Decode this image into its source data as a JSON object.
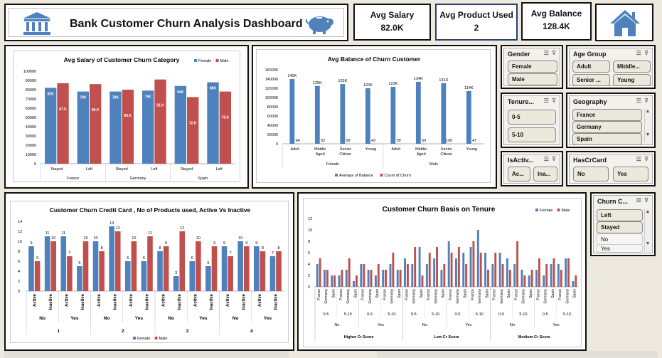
{
  "header": {
    "title": "Bank Customer Churn Analysis Dashboard",
    "bank_icon": "bank-building-icon",
    "piggy_icon": "piggy-bank-icon"
  },
  "kpis": [
    {
      "label": "Avg Salary",
      "value": "82.0K"
    },
    {
      "label": "Avg Product Used",
      "value": "2"
    },
    {
      "label": "Avg Balance",
      "value": "128.4K"
    }
  ],
  "home_icon": "home-icon",
  "colors": {
    "blue": "#4f81bd",
    "red": "#c0504d",
    "dark_icon": "#2c64b0"
  },
  "slicers": {
    "gender": {
      "title": "Gender",
      "items": [
        "Female",
        "Male"
      ]
    },
    "age_group": {
      "title": "Age Group",
      "items": [
        "Adult",
        "Middle...",
        "Senior ...",
        "Young"
      ]
    },
    "tenure": {
      "title": "Tenure...",
      "items": [
        "0-5",
        "5-10"
      ]
    },
    "geography": {
      "title": "Geography",
      "items": [
        "France",
        "Germany",
        "Spain"
      ]
    },
    "is_active": {
      "title": "IsActiv...",
      "items": [
        "Ac...",
        "Ina..."
      ]
    },
    "has_cr_card": {
      "title": "HasCrCard",
      "items": [
        "No",
        "Yes"
      ]
    },
    "churn": {
      "title": "Churn C...",
      "items": [
        "Left",
        "Stayed",
        "No",
        "Yes"
      ]
    }
  },
  "chart_data": [
    {
      "type": "bar",
      "title": "Avg Salary of Customer Churn Category",
      "legend": [
        "Female",
        "Male"
      ],
      "legend_position": "top-right",
      "ylim": [
        0,
        100000
      ],
      "yticks": [
        "0",
        "10000",
        "20000",
        "30000",
        "40000",
        "50000",
        "60000",
        "70000",
        "80000",
        "90000",
        "100000"
      ],
      "categories": [
        "Stayed",
        "Left",
        "Stayed",
        "Left",
        "Stayed",
        "Left"
      ],
      "groups": [
        "France",
        "Germany",
        "Spain"
      ],
      "series": [
        {
          "name": "Female",
          "values": [
            82000,
            78000,
            78000,
            79000,
            84000,
            88000
          ],
          "labels": [
            "82K",
            "78K",
            "78K",
            "79K",
            "84K",
            "88K"
          ]
        },
        {
          "name": "Male",
          "values": [
            87000,
            86000,
            80000,
            91000,
            72000,
            78000
          ],
          "labels": [
            "87.K",
            "86.K",
            "80.K",
            "91.K",
            "72.K",
            "78.K"
          ]
        }
      ]
    },
    {
      "type": "bar",
      "title": "Avg Balance of Churn Customer",
      "legend": [
        "Average of Balance",
        "Count of Churn"
      ],
      "legend_position": "bottom",
      "ylim": [
        0,
        160000
      ],
      "yticks": [
        "0",
        "20000",
        "40000",
        "60000",
        "80000",
        "100000",
        "120000",
        "140000",
        "160000"
      ],
      "categories": [
        "Adult",
        "Middle Aged",
        "Senior Citizen",
        "Young",
        "Adult",
        "Middle Aged",
        "Senior Citizen",
        "Young"
      ],
      "groups": [
        "Female",
        "Male"
      ],
      "series": [
        {
          "name": "Average of Balance",
          "values": [
            140000,
            125000,
            129000,
            120000,
            123000,
            134000,
            131000,
            114000
          ],
          "labels": [
            "140K",
            "125K",
            "129K",
            "120K",
            "123K",
            "134K",
            "131K",
            "114K"
          ]
        },
        {
          "name": "Count of Churn",
          "values": [
            64,
            52,
            99,
            43,
            39,
            50,
            106,
            47
          ],
          "labels": [
            "64",
            "52",
            "99",
            "43",
            "39",
            "50",
            "106",
            "47"
          ]
        }
      ]
    },
    {
      "type": "bar",
      "title": "Customer Churn Credit Card , No of Products used, Active Vs Inactive",
      "legend": [
        "Female",
        "Male"
      ],
      "legend_position": "bottom",
      "ylim": [
        0,
        14
      ],
      "yticks": [
        "0",
        "2",
        "4",
        "6",
        "8",
        "10",
        "12",
        "14"
      ],
      "categories": [
        "Active",
        "Inactive",
        "Active",
        "Inactive",
        "Active",
        "Inactive",
        "Active",
        "Inactive",
        "Active",
        "Inactive",
        "Active",
        "Inactive",
        "Active",
        "Inactive",
        "Active",
        "Inactive"
      ],
      "subgroups": [
        "No",
        "Yes",
        "No",
        "Yes",
        "No",
        "Yes",
        "No",
        "Yes"
      ],
      "groups": [
        "1",
        "2",
        "3",
        "4"
      ],
      "series": [
        {
          "name": "Female",
          "values": [
            9,
            11,
            11,
            5,
            10,
            13,
            6,
            6,
            8,
            3,
            6,
            5,
            9,
            10,
            9,
            7
          ]
        },
        {
          "name": "Male",
          "values": [
            6,
            10,
            7,
            10,
            8,
            12,
            10,
            11,
            9,
            12,
            10,
            9,
            7,
            9,
            8,
            8
          ]
        }
      ]
    },
    {
      "type": "bar",
      "title": "Customer Churn Basis on Tenure",
      "legend": [
        "Female",
        "Male"
      ],
      "legend_position": "top-right",
      "ylim": [
        0,
        12
      ],
      "yticks": [
        "0",
        "2",
        "4",
        "6",
        "8",
        "10",
        "12"
      ],
      "categories": [
        "France",
        "Germany",
        "Spain",
        "France",
        "Germany",
        "Spain",
        "France",
        "Germany",
        "Spain",
        "France",
        "Germany",
        "Spain",
        "France",
        "Germany",
        "Spain",
        "France",
        "Germany",
        "Spain",
        "France",
        "Germany",
        "Spain",
        "France",
        "Germany",
        "Spain",
        "France",
        "Germany",
        "Spain",
        "France",
        "Germany",
        "Spain",
        "France",
        "Germany",
        "Spain",
        "France",
        "Germany",
        "Spain"
      ],
      "tenure_groups": [
        "0-5",
        "5-10",
        "0-5",
        "5-10",
        "0-5",
        "5-10"
      ],
      "churn_groups": [
        "No",
        "Yes",
        "No",
        "Yes",
        "No",
        "Yes"
      ],
      "score_groups": [
        "Higher Cr Score",
        "Low Cr Score",
        "Medium Cr Score"
      ],
      "series": [
        {
          "name": "Female",
          "values": [
            4,
            3,
            2,
            2,
            3,
            1,
            4,
            3,
            2,
            3,
            4,
            3,
            5,
            4,
            7,
            4,
            5,
            3,
            8,
            5,
            6,
            7,
            10,
            6,
            4,
            6,
            5,
            4,
            3,
            2,
            3,
            2,
            4,
            4,
            5,
            1
          ]
        },
        {
          "name": "Male",
          "values": [
            5,
            3,
            2,
            3,
            5,
            2,
            4,
            3,
            4,
            3,
            6,
            3,
            4,
            7,
            2,
            6,
            7,
            4,
            6,
            7,
            4,
            8,
            6,
            3,
            6,
            4,
            3,
            8,
            2,
            3,
            5,
            4,
            5,
            3,
            5,
            2
          ]
        }
      ]
    }
  ]
}
